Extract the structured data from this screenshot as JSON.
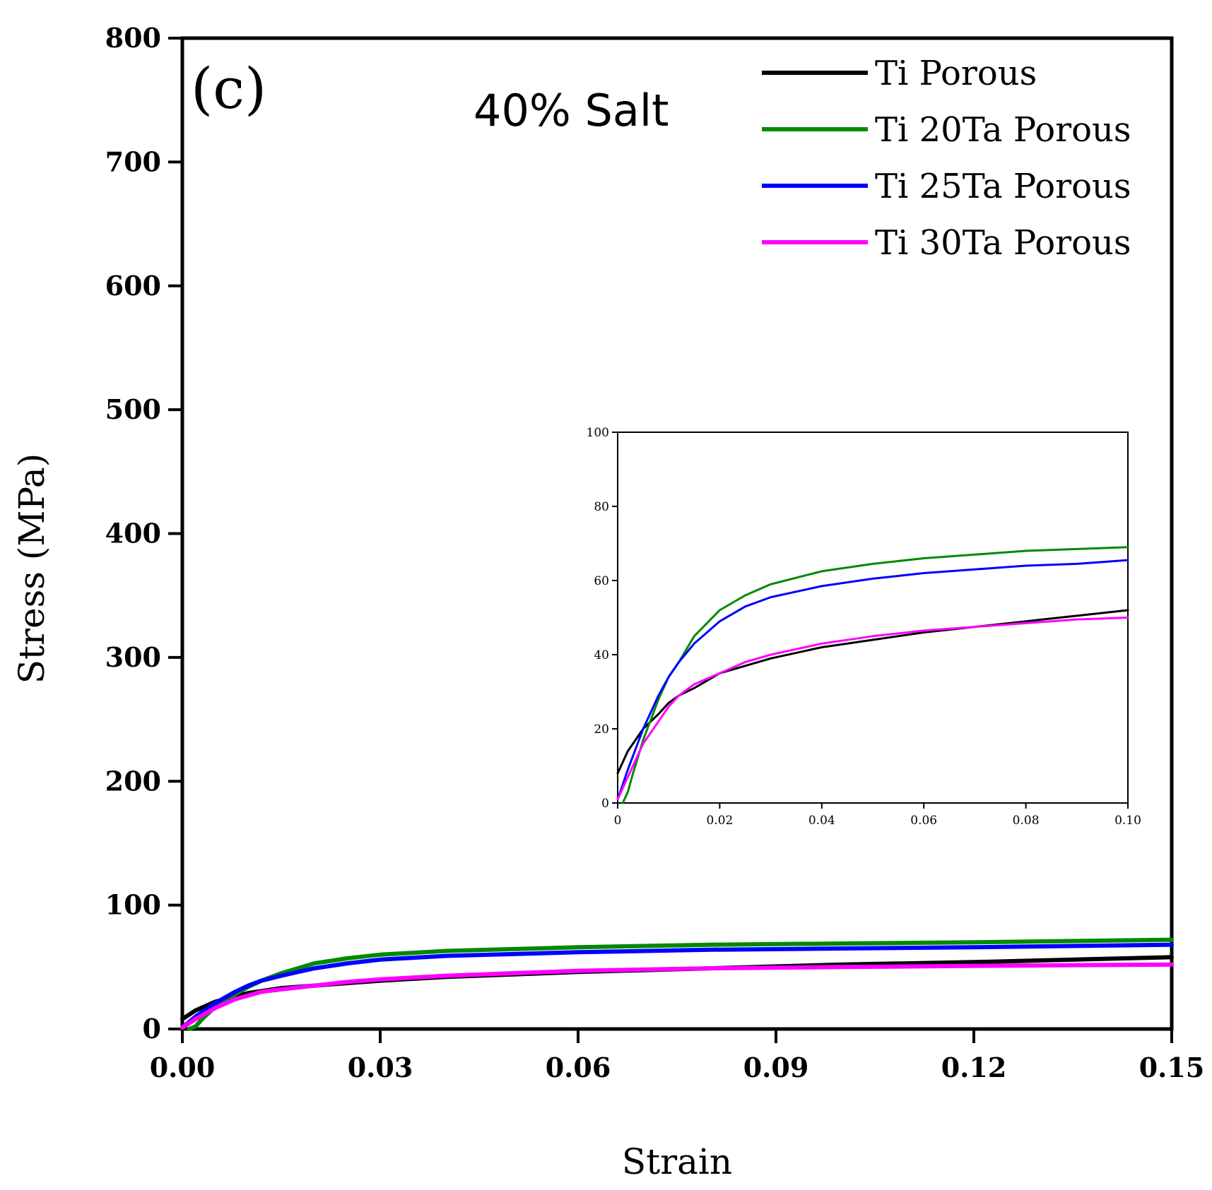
{
  "chart_data": [
    {
      "type": "line",
      "panel_label": "(c)",
      "title": "40% Salt",
      "xlabel": "Strain",
      "ylabel": "Stress (MPa)",
      "xlim": [
        0,
        0.15
      ],
      "ylim": [
        0,
        800
      ],
      "xticks": [
        "0.00",
        "0.03",
        "0.06",
        "0.09",
        "0.12",
        "0.15"
      ],
      "yticks": [
        "0",
        "100",
        "200",
        "300",
        "400",
        "500",
        "600",
        "700",
        "800"
      ],
      "legend_position": "top-right",
      "series": [
        {
          "name": "Ti Porous",
          "color": "#000000",
          "x": [
            0,
            0.002,
            0.005,
            0.01,
            0.015,
            0.02,
            0.03,
            0.04,
            0.06,
            0.08,
            0.1,
            0.12,
            0.15
          ],
          "y": [
            8,
            15,
            22,
            29,
            33,
            35,
            39,
            42,
            46,
            49,
            52,
            54,
            58
          ]
        },
        {
          "name": "Ti 20Ta Porous",
          "color": "#008a00",
          "x": [
            0.001,
            0.002,
            0.003,
            0.005,
            0.008,
            0.01,
            0.012,
            0.015,
            0.02,
            0.025,
            0.03,
            0.04,
            0.06,
            0.08,
            0.1,
            0.12,
            0.15
          ],
          "y": [
            0,
            2,
            8,
            18,
            28,
            34,
            39,
            45,
            53,
            57,
            60,
            63,
            66,
            68,
            69,
            70,
            72
          ]
        },
        {
          "name": "Ti 25Ta Porous",
          "color": "#0000ff",
          "x": [
            0,
            0.002,
            0.005,
            0.008,
            0.01,
            0.012,
            0.015,
            0.02,
            0.025,
            0.03,
            0.04,
            0.06,
            0.08,
            0.1,
            0.12,
            0.15
          ],
          "y": [
            1,
            10,
            21,
            30,
            35,
            39,
            43,
            49,
            53,
            56,
            59,
            62,
            64,
            65,
            66,
            68
          ]
        },
        {
          "name": "Ti 30Ta Porous",
          "color": "#ff00ff",
          "x": [
            0,
            0.002,
            0.005,
            0.008,
            0.01,
            0.012,
            0.015,
            0.02,
            0.025,
            0.03,
            0.04,
            0.06,
            0.08,
            0.1,
            0.12,
            0.15
          ],
          "y": [
            1,
            8,
            17,
            24,
            27,
            30,
            32,
            35,
            38,
            40,
            43,
            47,
            49,
            50,
            51,
            52
          ]
        }
      ]
    },
    {
      "type": "line",
      "role": "inset",
      "xlim": [
        0,
        0.1
      ],
      "ylim": [
        0,
        100
      ],
      "xticks": [
        "0",
        "0.02",
        "0.04",
        "0.06",
        "0.08",
        "0.10"
      ],
      "yticks": [
        "0",
        "20",
        "40",
        "60",
        "80",
        "100"
      ],
      "series": [
        {
          "name": "Ti Porous",
          "color": "#000000",
          "x": [
            0,
            0.002,
            0.005,
            0.008,
            0.01,
            0.012,
            0.015,
            0.02,
            0.025,
            0.03,
            0.04,
            0.05,
            0.06,
            0.07,
            0.08,
            0.09,
            0.1
          ],
          "y": [
            8,
            14,
            20,
            24,
            27,
            29,
            31,
            35,
            37,
            39,
            42,
            44,
            46,
            47.5,
            49,
            50.5,
            52
          ]
        },
        {
          "name": "Ti 20Ta Porous",
          "color": "#008a00",
          "x": [
            0.001,
            0.002,
            0.003,
            0.005,
            0.008,
            0.01,
            0.012,
            0.015,
            0.02,
            0.025,
            0.03,
            0.04,
            0.05,
            0.06,
            0.07,
            0.08,
            0.09,
            0.1
          ],
          "y": [
            0,
            3,
            8,
            17,
            28,
            34,
            38,
            45,
            52,
            56,
            59,
            62.5,
            64.5,
            66,
            67,
            68,
            68.5,
            69
          ]
        },
        {
          "name": "Ti 25Ta Porous",
          "color": "#0000ff",
          "x": [
            0,
            0.002,
            0.005,
            0.008,
            0.01,
            0.012,
            0.015,
            0.02,
            0.025,
            0.03,
            0.04,
            0.05,
            0.06,
            0.07,
            0.08,
            0.09,
            0.1
          ],
          "y": [
            1,
            9,
            20,
            29,
            34,
            38,
            43,
            49,
            53,
            55.5,
            58.5,
            60.5,
            62,
            63,
            64,
            64.5,
            65.5
          ]
        },
        {
          "name": "Ti 30Ta Porous",
          "color": "#ff00ff",
          "x": [
            0,
            0.002,
            0.005,
            0.008,
            0.01,
            0.012,
            0.015,
            0.02,
            0.025,
            0.03,
            0.04,
            0.05,
            0.06,
            0.07,
            0.08,
            0.09,
            0.1
          ],
          "y": [
            1,
            7,
            16,
            22,
            26,
            29,
            32,
            35,
            38,
            40,
            43,
            45,
            46.5,
            47.5,
            48.5,
            49.5,
            50
          ]
        }
      ]
    }
  ]
}
